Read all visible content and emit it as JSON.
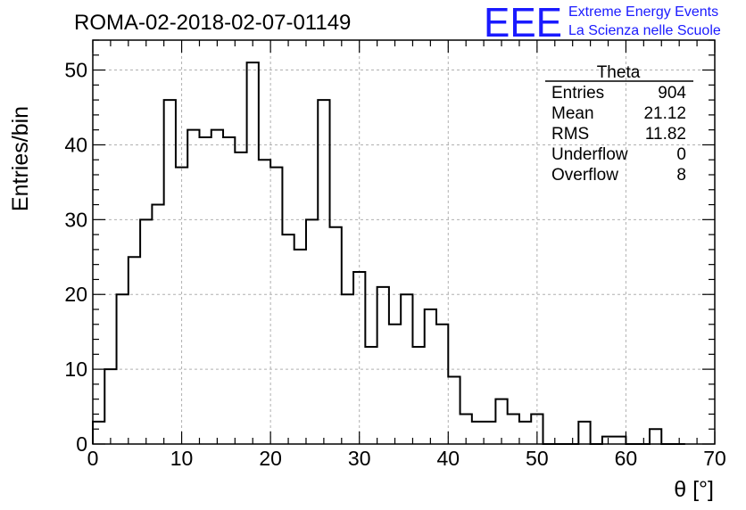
{
  "header": {
    "run_id": "ROMA-02-2018-02-07-01149",
    "logo_text": "EEE",
    "logo_line1": "Extreme Energy Events",
    "logo_line2": "La Scienza nelle Scuole"
  },
  "stats_box": {
    "title": "Theta",
    "rows": [
      {
        "label": "Entries",
        "value": "904"
      },
      {
        "label": "Mean",
        "value": "21.12"
      },
      {
        "label": "RMS",
        "value": "11.82"
      },
      {
        "label": "Underflow",
        "value": "0"
      },
      {
        "label": "Overflow",
        "value": "8"
      }
    ]
  },
  "chart_data": {
    "type": "bar",
    "histogram": true,
    "title": "ROMA-02-2018-02-07-01149",
    "xlabel": "θ [°]",
    "ylabel": "Entries/bin",
    "xlim": [
      0,
      70
    ],
    "ylim": [
      0,
      54
    ],
    "grid": true,
    "legend": "top-right",
    "x_ticks": [
      0,
      10,
      20,
      30,
      40,
      50,
      60,
      70
    ],
    "y_ticks": [
      0,
      10,
      20,
      30,
      40,
      50
    ],
    "bin_edges": [
      0,
      1.3333,
      2.6667,
      4,
      5.3333,
      6.6667,
      8,
      9.3333,
      10.6667,
      12,
      13.3333,
      14.6667,
      16,
      17.3333,
      18.6667,
      20,
      21.3333,
      22.6667,
      24,
      25.3333,
      26.6667,
      28,
      29.3333,
      30.6667,
      32,
      33.3333,
      34.6667,
      36,
      37.3333,
      38.6667,
      40,
      41.3333,
      42.6667,
      44,
      45.3333,
      46.6667,
      48,
      49.3333,
      50.6667,
      52,
      53.3333,
      54.6667,
      56,
      57.3333,
      58.6667,
      60,
      61.3333,
      62.6667,
      64,
      65.3333,
      66.6667
    ],
    "values": [
      3,
      10,
      20,
      25,
      30,
      32,
      46,
      37,
      42,
      41,
      42,
      41,
      39,
      51,
      38,
      37,
      28,
      26,
      30,
      46,
      29,
      20,
      23,
      13,
      21,
      16,
      20,
      13,
      18,
      16,
      9,
      4,
      3,
      3,
      6,
      4,
      3,
      4,
      0,
      0,
      0,
      3,
      0,
      1,
      1,
      0,
      0,
      2,
      0,
      0
    ],
    "colors": {
      "line": "#000000",
      "grid": "#b0b0b0",
      "logo": "#1a1aff"
    }
  }
}
